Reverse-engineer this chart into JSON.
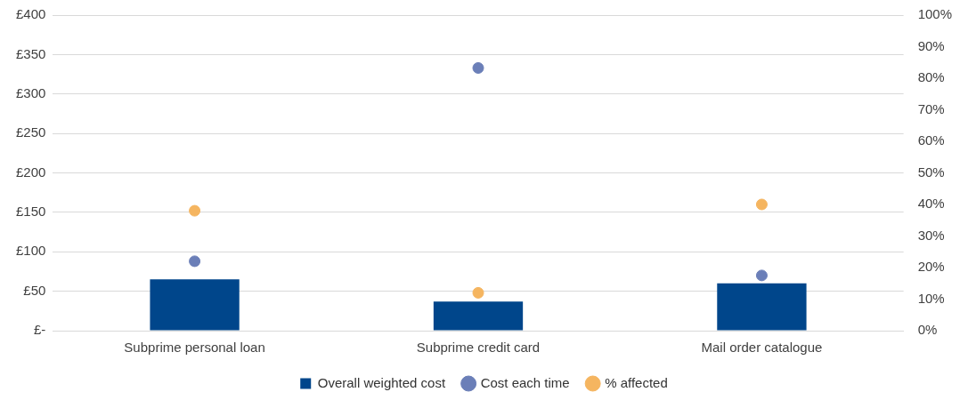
{
  "chart_data": {
    "type": "bar",
    "categories": [
      "Subprime personal loan",
      "Subprime credit card",
      "Mail order catalogue"
    ],
    "series": [
      {
        "name": "Overall weighted cost",
        "color": "#00468b",
        "values": [
          65,
          37,
          60
        ]
      },
      {
        "name": "Cost each time",
        "type": "scatter",
        "color": "#6b7fb8",
        "x": [
          "Subprime personal loan",
          "Subprime credit card",
          "Mail order catalogue"
        ],
        "values": [
          88,
          333,
          70
        ]
      },
      {
        "name": "% affected",
        "type": "scatter",
        "axis": "y2",
        "color": "#f5b560",
        "x": [
          "Subprime personal loan",
          "Subprime credit card",
          "Mail order catalogue"
        ],
        "values": [
          38,
          12,
          40
        ]
      }
    ],
    "ylim": [
      0,
      400
    ],
    "yticks": [
      {
        "value": 0,
        "label": "£-"
      },
      {
        "value": 50,
        "label": "£50"
      },
      {
        "value": 100,
        "label": "£100"
      },
      {
        "value": 150,
        "label": "£150"
      },
      {
        "value": 200,
        "label": "£200"
      },
      {
        "value": 250,
        "label": "£250"
      },
      {
        "value": 300,
        "label": "£300"
      },
      {
        "value": 350,
        "label": "£350"
      },
      {
        "value": 400,
        "label": "£400"
      }
    ],
    "y2lim": [
      0,
      100
    ],
    "y2ticks": [
      {
        "value": 0,
        "label": "0%"
      },
      {
        "value": 10,
        "label": "10%"
      },
      {
        "value": 20,
        "label": "20%"
      },
      {
        "value": 30,
        "label": "30%"
      },
      {
        "value": 40,
        "label": "40%"
      },
      {
        "value": 50,
        "label": "50%"
      },
      {
        "value": 60,
        "label": "60%"
      },
      {
        "value": 70,
        "label": "70%"
      },
      {
        "value": 80,
        "label": "80%"
      },
      {
        "value": 90,
        "label": "90%"
      },
      {
        "value": 100,
        "label": "100%"
      }
    ],
    "grid": "y",
    "legend": "bottom",
    "marker": "circle"
  }
}
